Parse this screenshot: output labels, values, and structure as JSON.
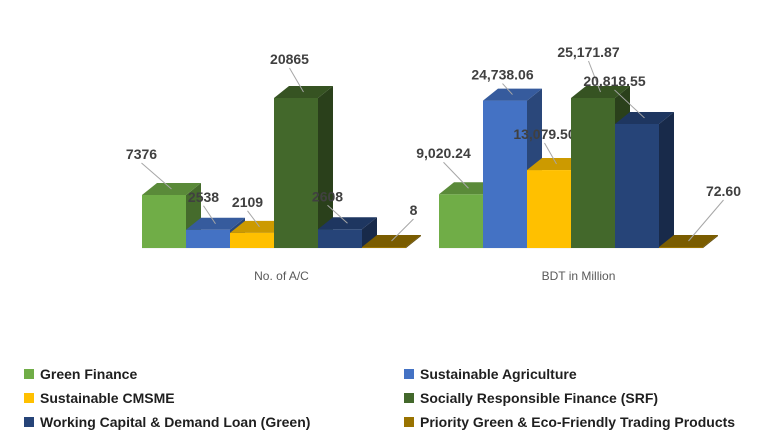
{
  "chart_data": {
    "type": "bar",
    "style": "3d-clustered-column",
    "categories": [
      "No. of A/C",
      "BDT in Million"
    ],
    "series": [
      {
        "name": "Green Finance",
        "values": [
          7376,
          9020.24
        ],
        "labels": [
          "7376",
          "9,020.24"
        ],
        "color": "#70ad47"
      },
      {
        "name": "Sustainable Agriculture",
        "values": [
          2538,
          24738.06
        ],
        "labels": [
          "2538",
          "24,738.06"
        ],
        "color": "#4472c4"
      },
      {
        "name": "Sustainable CMSME",
        "values": [
          2109,
          13079.5
        ],
        "labels": [
          "2109",
          "13,079.50"
        ],
        "color": "#ffc000"
      },
      {
        "name": "Socially Responsible Finance (SRF)",
        "values": [
          20865,
          25171.87
        ],
        "labels": [
          "20865",
          "25,171.87"
        ],
        "color": "#43682b"
      },
      {
        "name": "Working Capital & Demand Loan (Green)",
        "values": [
          2608,
          20818.55
        ],
        "labels": [
          "2608",
          "20,818.55"
        ],
        "color": "#264478"
      },
      {
        "name": "Priority Green & Eco-Friendly Trading Products",
        "values": [
          8,
          72.6
        ],
        "labels": [
          "8",
          "72.60"
        ],
        "color": "#997300"
      }
    ],
    "legend": "bottom",
    "grid": false
  }
}
